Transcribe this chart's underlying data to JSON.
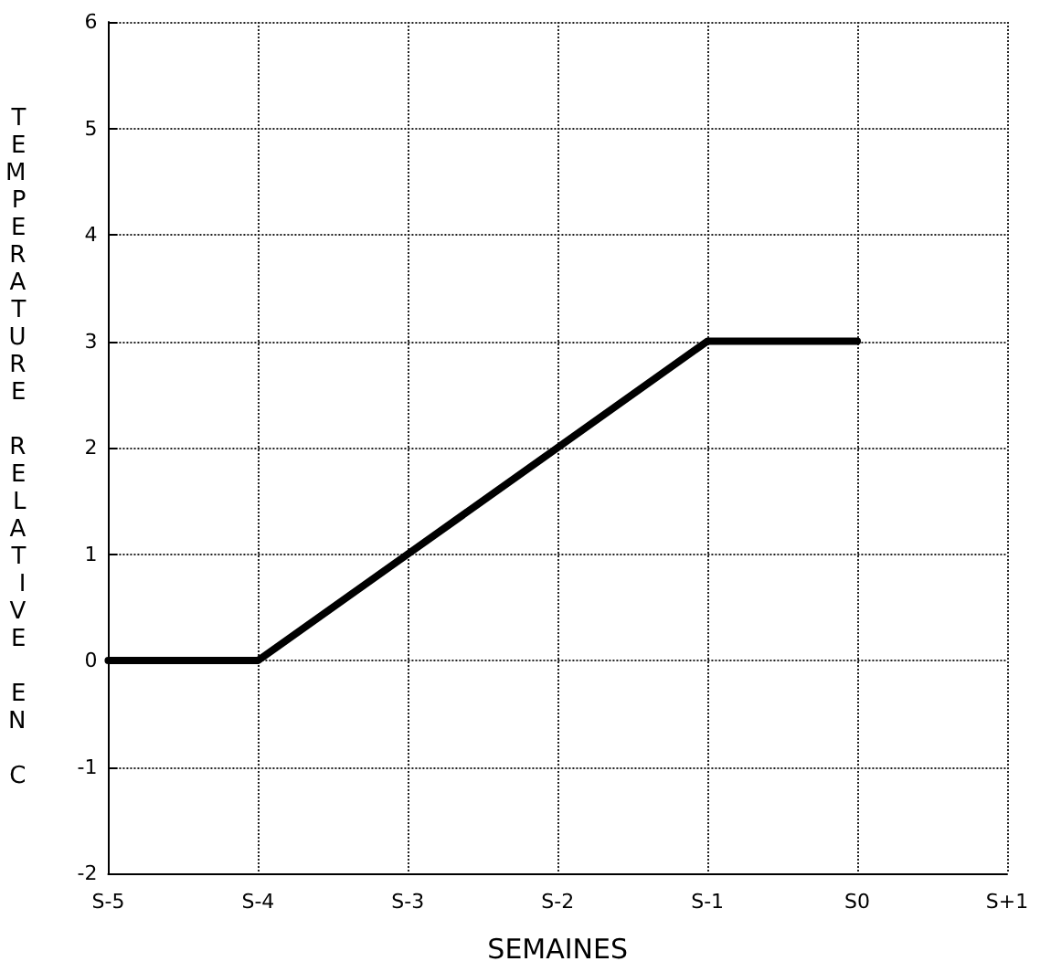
{
  "chart_data": {
    "type": "line",
    "xlabel": "SEMAINES",
    "ylabel": "TEMPERATURE RELATIVE EN C",
    "categories": [
      "S-5",
      "S-4",
      "S-3",
      "S-2",
      "S-1",
      "S0",
      "S+1"
    ],
    "series": [
      {
        "color": "#000000",
        "values": [
          0,
          0,
          1,
          2,
          3,
          3,
          null
        ]
      }
    ],
    "ylim": [
      -2,
      6
    ],
    "yticks": [
      -2,
      -1,
      0,
      1,
      2,
      3,
      4,
      5,
      6
    ],
    "grid": true,
    "marker": "none",
    "line_style": "solid"
  }
}
